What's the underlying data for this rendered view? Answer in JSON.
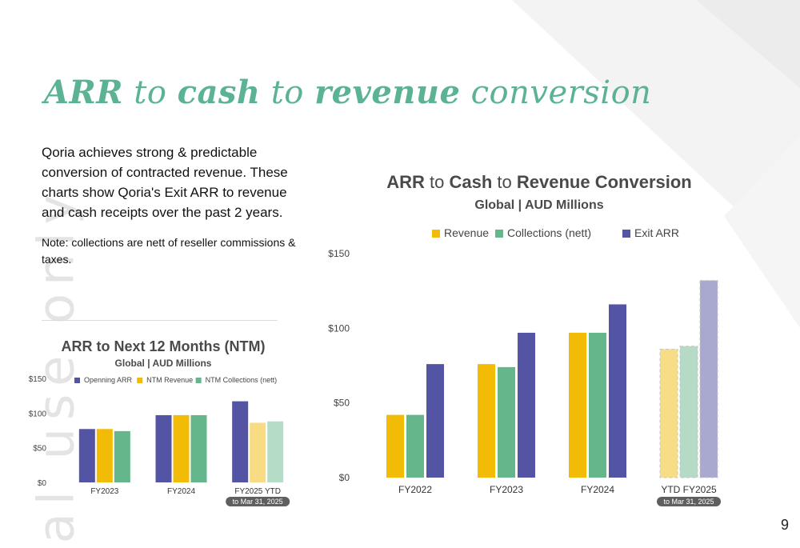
{
  "slide": {
    "title_parts": [
      "ARR",
      " to ",
      "cash",
      " to ",
      "revenue",
      " conversion"
    ],
    "intro": "Qoria achieves strong & predictable conversion of contracted revenue. These charts show Qoria's Exit ARR to revenue and cash receipts over the past 2 years.",
    "note": "Note: collections are nett of reseller commissions & taxes.",
    "watermark": "al use only",
    "page_number": "9"
  },
  "chart_data": [
    {
      "id": "small",
      "type": "bar",
      "title": "ARR to Next 12 Months (NTM)",
      "subtitle": "Global | AUD Millions",
      "categories": [
        "FY2023",
        "FY2024",
        "FY2025 YTD"
      ],
      "category_note": {
        "index": 2,
        "text": "to Mar 31, 2025"
      },
      "series": [
        {
          "name": "Openning ARR",
          "color": "#5454a4",
          "values": [
            77,
            97,
            117
          ]
        },
        {
          "name": "NTM Revenue",
          "color": "#f2bb05",
          "values": [
            77,
            97,
            86
          ]
        },
        {
          "name": "NTM Collections (nett)",
          "color": "#66b68c",
          "values": [
            74,
            97,
            88
          ]
        }
      ],
      "faded_category_index": 2,
      "faded_colors": [
        "#5454a4",
        "#f7dc84",
        "#b4dcc6"
      ],
      "ylim": [
        0,
        150
      ],
      "yticks": [
        0,
        50,
        100,
        150
      ],
      "ytick_labels": [
        "$0",
        "$50",
        "$100",
        "$150"
      ],
      "legend_position": "top",
      "grid": false
    },
    {
      "id": "large",
      "type": "bar",
      "title_parts": [
        {
          "text": "ARR ",
          "bold": true
        },
        {
          "text": "to ",
          "bold": false
        },
        {
          "text": "Cash ",
          "bold": true
        },
        {
          "text": "to ",
          "bold": false
        },
        {
          "text": "Revenue Conversion",
          "bold": true
        }
      ],
      "subtitle": "Global | AUD Millions",
      "categories": [
        "FY2022",
        "FY2023",
        "FY2024",
        "YTD FY2025"
      ],
      "category_note": {
        "index": 3,
        "text": "to Mar 31, 2025"
      },
      "series": [
        {
          "name": "Revenue",
          "color": "#f2bb05",
          "values": [
            42,
            76,
            97,
            86
          ]
        },
        {
          "name": "Collections (nett)",
          "color": "#66b68c",
          "values": [
            42,
            74,
            97,
            88
          ]
        },
        {
          "name": "Exit ARR",
          "color": "#5454a4",
          "values": [
            76,
            97,
            116,
            132
          ]
        }
      ],
      "faded_category_index": 3,
      "faded_colors": [
        "#f8dd87",
        "#b5dbc6",
        "#a9a8cf"
      ],
      "ylim": [
        0,
        150
      ],
      "yticks": [
        0,
        50,
        100,
        150
      ],
      "ytick_labels": [
        "$0",
        "$50",
        "$100",
        "$150"
      ],
      "legend_position": "top",
      "grid": false
    }
  ]
}
